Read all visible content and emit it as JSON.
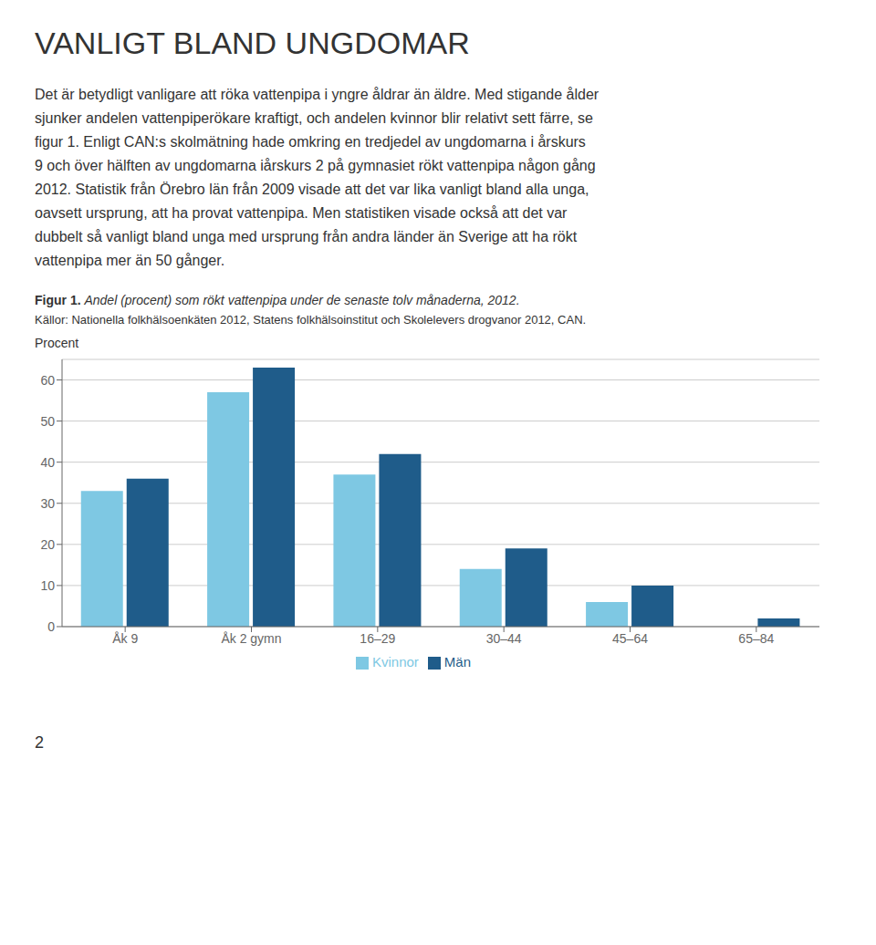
{
  "chart_data": {
    "type": "bar",
    "title": "VANLIGT BLAND UNGDOMAR",
    "annotations": [
      "Det är betydligt vanligare att röka vattenpipa i yngre åldrar än äldre. Med stigande ålder",
      "sjunker andelen vattenpiperökare kraftigt, och andelen kvinnor blir relativt sett färre, se",
      "figur 1. Enligt CAN:s skolmätning hade omkring en tredjedel av ungdomarna i årskurs",
      "9 och över hälften av ungdomarna iårskurs 2 på gymnasiet rökt vattenpipa någon gång",
      "2012. Statistik från Örebro län från 2009 visade att det var lika vanligt bland alla unga,",
      "oavsett ursprung, att ha provat vattenpipa. Men statistiken visade också att det var",
      "dubbelt så vanligt bland unga med ursprung från andra länder än Sverige att ha rökt",
      "vattenpipa mer än 50 gånger.",
      "Figur 1.",
      "Andel (procent) som rökt vattenpipa under de senaste tolv månaderna, 2012.",
      "Källor: Nationella folkhälsoenkäten 2012, Statens folkhälsoinstitut och Skolelevers drogvanor 2012, CAN.",
      "2"
    ],
    "ylabel": "Procent",
    "categories": [
      "Åk 9",
      "Åk 2 gymn",
      "16–29",
      "30–44",
      "45–64",
      "65–84"
    ],
    "series": [
      {
        "name": "Kvinnor",
        "color": "#7ec8e3",
        "values": [
          33,
          57,
          37,
          14,
          6,
          0
        ]
      },
      {
        "name": "Män",
        "color": "#1f5c8a",
        "values": [
          36,
          63,
          42,
          19,
          10,
          2
        ]
      }
    ],
    "ylim": [
      0,
      65
    ],
    "yticks": [
      0,
      10,
      20,
      30,
      40,
      50,
      60
    ],
    "grid": true,
    "legend": "bottom"
  }
}
